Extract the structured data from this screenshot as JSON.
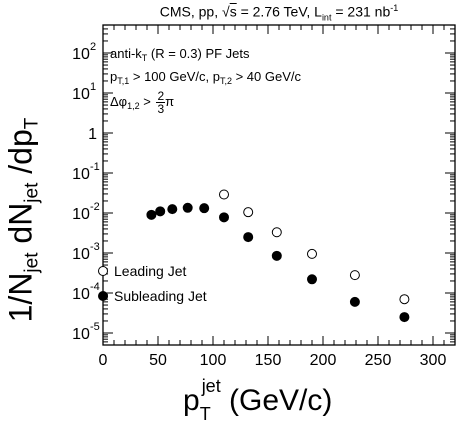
{
  "header": {
    "pre": "CMS, pp, ",
    "sqrt_symbol": "√",
    "s": "s",
    "energy": " = 2.76 TeV, L",
    "lumi_sub": "int",
    "lumi_val": " = 231 nb",
    "lumi_sup": "-1"
  },
  "annotations": {
    "line1_a": "anti-k",
    "line1_sub": "T",
    "line1_b": " (R = 0.3) PF Jets",
    "line2_a": "p",
    "line2_sub1": "T,1",
    "line2_b": " > 100 GeV/c, p",
    "line2_sub2": "T,2",
    "line2_c": " > 40 GeV/c",
    "line3_a": "Δφ",
    "line3_sub": "1,2",
    "line3_gt": " > ",
    "frac_num": "2",
    "frac_den": "3",
    "line3_pi": "π"
  },
  "axes": {
    "ylabel_a": "1/N",
    "ylabel_sub1": "jet",
    "ylabel_b": " dN",
    "ylabel_sub2": "jet",
    "ylabel_c": " /dp",
    "ylabel_sub3": "T",
    "xlabel_p": "p",
    "xlabel_sub": "T",
    "xlabel_sup": "jet",
    "xlabel_unit": " (GeV/c)"
  },
  "legend": {
    "leading": "Leading Jet",
    "subleading": "Subleading Jet"
  },
  "chart_data": {
    "type": "scatter",
    "xlim": [
      0,
      320
    ],
    "ylim_log10": [
      -5.3,
      2.7
    ],
    "yscale": "log",
    "x_ticks": [
      0,
      50,
      100,
      150,
      200,
      250,
      300
    ],
    "y_tick_labels": [
      {
        "exp": "2",
        "value": 100
      },
      {
        "exp": "1",
        "value": 10
      },
      {
        "exp": "",
        "value": 1
      },
      {
        "exp": "-1",
        "value": 0.1
      },
      {
        "exp": "-2",
        "value": 0.01
      },
      {
        "exp": "-3",
        "value": 0.001
      },
      {
        "exp": "-4",
        "value": 0.0001
      },
      {
        "exp": "-5",
        "value": 1e-05
      }
    ],
    "series": [
      {
        "name": "Leading Jet",
        "marker": "open-circle",
        "x": [
          110,
          132,
          158,
          190,
          229,
          274
        ],
        "y": [
          0.029,
          0.0105,
          0.0033,
          0.00095,
          0.00028,
          7e-05
        ]
      },
      {
        "name": "Subleading Jet",
        "marker": "filled-circle",
        "x": [
          44,
          52,
          63,
          77,
          92,
          110,
          132,
          158,
          190,
          229,
          274
        ],
        "y": [
          0.009,
          0.011,
          0.0125,
          0.0135,
          0.0132,
          0.0078,
          0.0025,
          0.00085,
          0.00022,
          6e-05,
          2.5e-05
        ]
      }
    ],
    "grid": false
  }
}
